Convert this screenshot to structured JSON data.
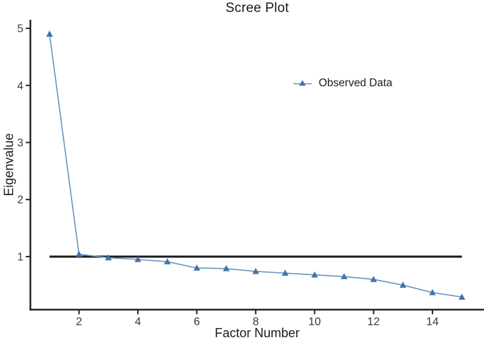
{
  "chart_data": {
    "type": "line",
    "title": "Scree Plot",
    "xlabel": "Factor Number",
    "ylabel": "Eigenvalue",
    "x": [
      1,
      2,
      3,
      4,
      5,
      6,
      7,
      8,
      9,
      10,
      11,
      12,
      13,
      14,
      15
    ],
    "series": [
      {
        "name": "Observed Data",
        "marker": "triangle-up",
        "values": [
          4.9,
          1.04,
          0.98,
          0.95,
          0.91,
          0.8,
          0.79,
          0.74,
          0.71,
          0.68,
          0.65,
          0.6,
          0.5,
          0.37,
          0.29
        ]
      }
    ],
    "reference_line": {
      "y": 1.0,
      "x_start": 1,
      "x_end": 15
    },
    "x_ticks": [
      2,
      4,
      6,
      8,
      10,
      12,
      14
    ],
    "y_ticks": [
      1,
      2,
      3,
      4,
      5
    ],
    "xlim": [
      0.35,
      15.75
    ],
    "ylim": [
      0.07,
      5.15
    ],
    "grid": false,
    "legend": {
      "label": "Observed Data",
      "position": "inside-top-center-right"
    },
    "colors": {
      "line": "#6B95C2",
      "marker": "#3F74AC",
      "axis": "#262626",
      "reference": "#1A1A1A",
      "tick_text": "#3A3A3A",
      "text": "#1B1B1B",
      "background": "#FFFFFF"
    }
  }
}
